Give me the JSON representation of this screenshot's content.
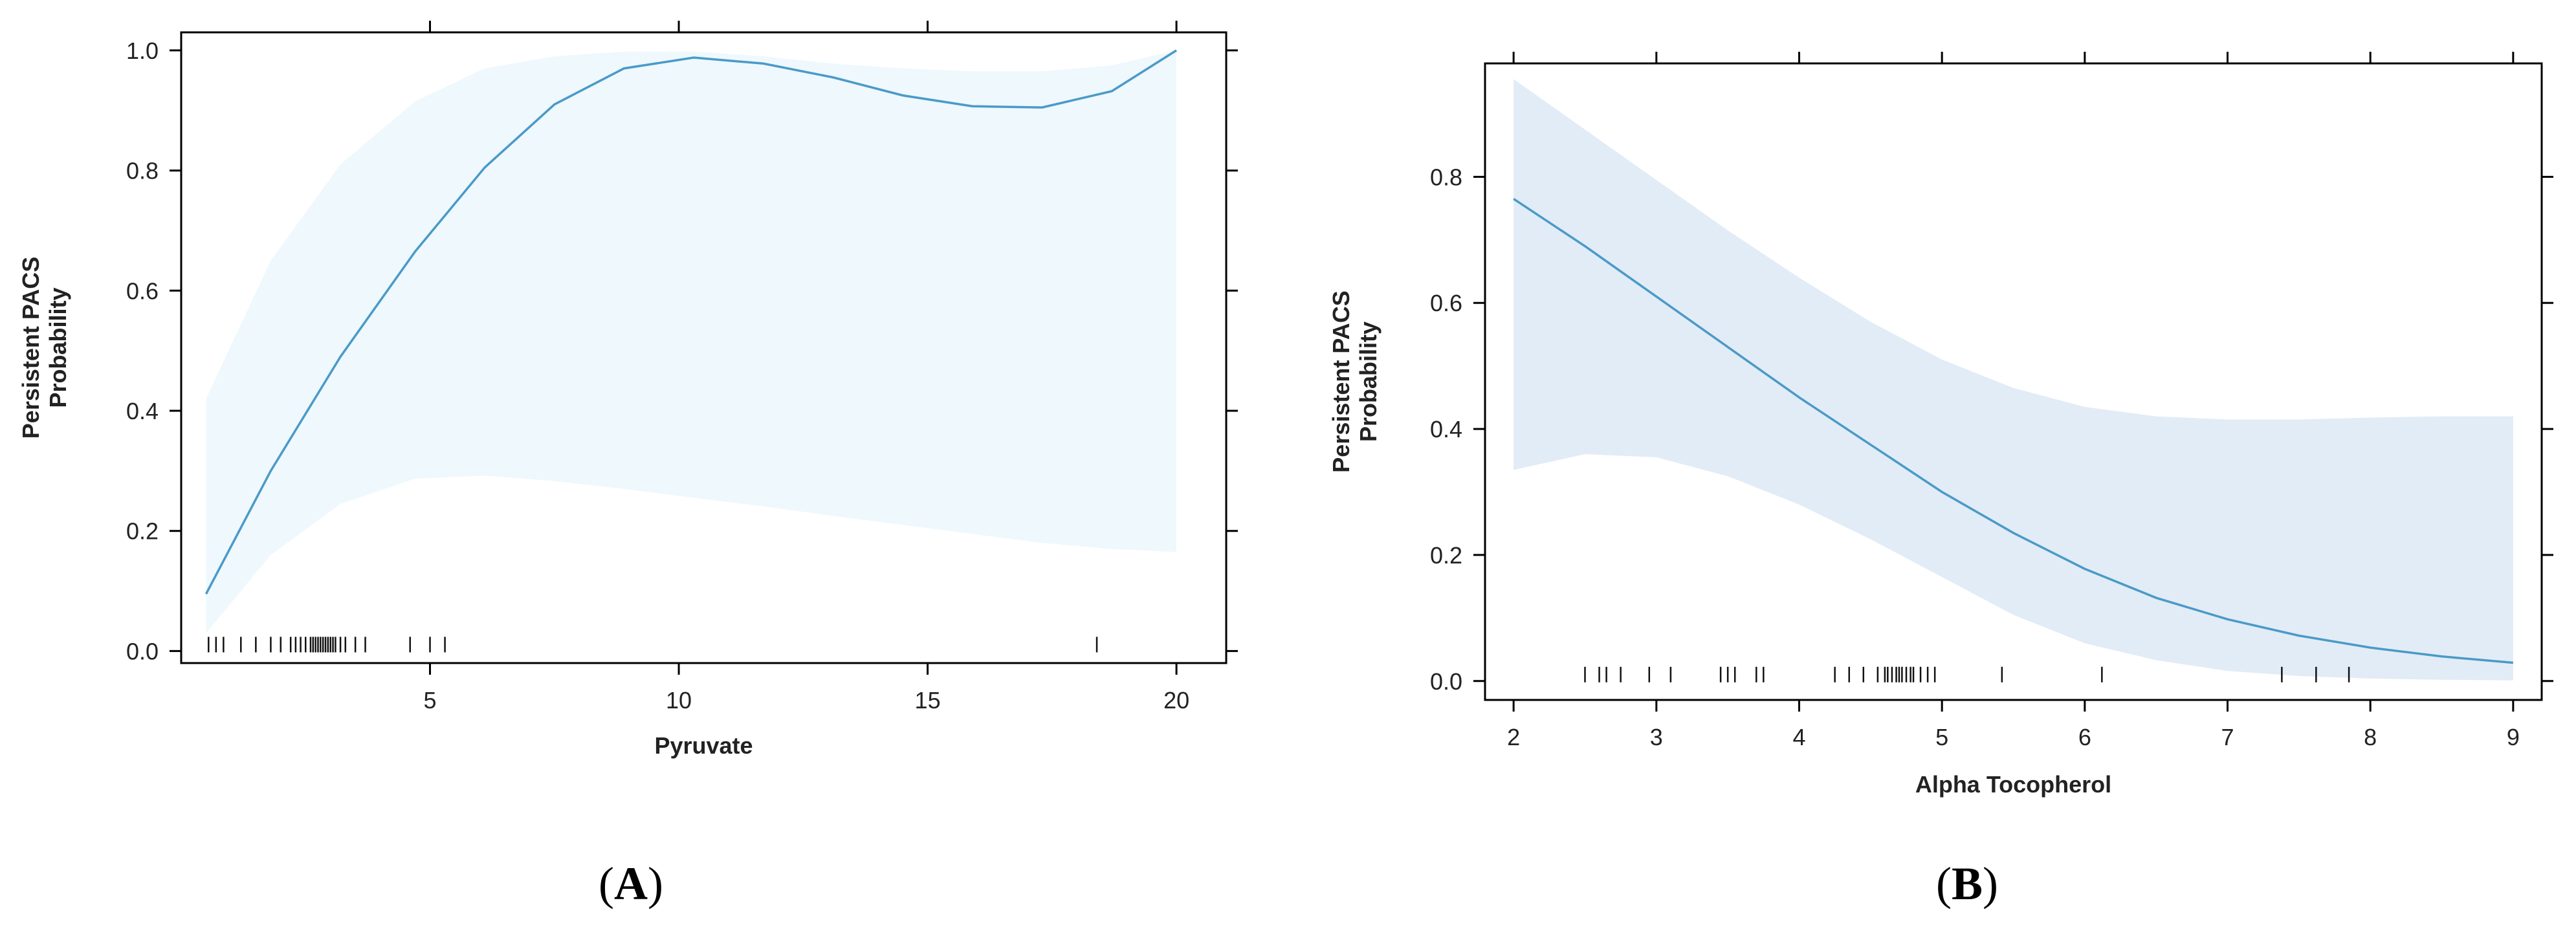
{
  "chart_data": [
    {
      "type": "line",
      "panel_label": "A",
      "xlabel": "Pyruvate",
      "ylabel_lines": [
        "Persistent PACS",
        "Probability"
      ],
      "xlim": [
        0,
        21
      ],
      "ylim": [
        -0.02,
        1.03
      ],
      "xticks": [
        5,
        10,
        15,
        20
      ],
      "xtick_labels": [
        "5",
        "10",
        "15",
        "20"
      ],
      "yticks": [
        0.0,
        0.2,
        0.4,
        0.6,
        0.8,
        1.0
      ],
      "ytick_labels": [
        "0.0",
        "0.2",
        "0.4",
        "0.6",
        "0.8",
        "1.0"
      ],
      "line_color": "#4a9ac8",
      "band_color": "#eef8fd",
      "series": [
        {
          "x": [
            0.5,
            1.8,
            3.2,
            4.7,
            6.1,
            7.5,
            8.9,
            10.3,
            11.7,
            13.1,
            14.5,
            15.9,
            17.3,
            18.7,
            20.0
          ],
          "y": [
            0.095,
            0.3,
            0.49,
            0.665,
            0.805,
            0.91,
            0.97,
            0.988,
            0.978,
            0.955,
            0.925,
            0.907,
            0.905,
            0.932,
            1.0
          ],
          "lower": [
            0.03,
            0.16,
            0.245,
            0.287,
            0.292,
            0.283,
            0.27,
            0.255,
            0.241,
            0.225,
            0.21,
            0.195,
            0.18,
            0.17,
            0.165
          ],
          "upper": [
            0.42,
            0.65,
            0.81,
            0.915,
            0.97,
            0.99,
            0.998,
            0.998,
            0.99,
            0.978,
            0.97,
            0.965,
            0.965,
            0.975,
            1.0
          ]
        }
      ],
      "rug": [
        0.55,
        0.7,
        0.85,
        1.2,
        1.5,
        1.8,
        2.0,
        2.2,
        2.3,
        2.4,
        2.5,
        2.6,
        2.65,
        2.7,
        2.75,
        2.8,
        2.85,
        2.9,
        2.95,
        3.0,
        3.05,
        3.1,
        3.2,
        3.3,
        3.5,
        3.7,
        4.6,
        5.0,
        5.3,
        18.4
      ]
    },
    {
      "type": "line",
      "panel_label": "B",
      "xlabel": "Alpha Tocopherol",
      "ylabel_lines": [
        "Persistent PACS",
        "Probability"
      ],
      "xlim": [
        1.8,
        9.2
      ],
      "ylim": [
        -0.03,
        0.98
      ],
      "xticks": [
        2,
        3,
        4,
        5,
        6,
        7,
        8,
        9
      ],
      "xtick_labels": [
        "2",
        "3",
        "4",
        "5",
        "6",
        "7",
        "8",
        "9"
      ],
      "yticks": [
        0.0,
        0.2,
        0.4,
        0.6,
        0.8
      ],
      "ytick_labels": [
        "0.0",
        "0.2",
        "0.4",
        "0.6",
        "0.8"
      ],
      "line_color": "#4a9ac8",
      "band_color": "#e2ecf6",
      "series": [
        {
          "x": [
            2.0,
            2.5,
            3.0,
            3.5,
            4.0,
            4.5,
            5.0,
            5.5,
            6.0,
            6.5,
            7.0,
            7.5,
            8.0,
            8.5,
            9.0
          ],
          "y": [
            0.765,
            0.69,
            0.61,
            0.53,
            0.45,
            0.375,
            0.3,
            0.235,
            0.178,
            0.132,
            0.098,
            0.072,
            0.053,
            0.039,
            0.029
          ],
          "lower": [
            0.335,
            0.36,
            0.355,
            0.325,
            0.28,
            0.225,
            0.165,
            0.105,
            0.06,
            0.033,
            0.016,
            0.008,
            0.004,
            0.002,
            0.001
          ],
          "upper": [
            0.955,
            0.875,
            0.795,
            0.715,
            0.64,
            0.57,
            0.51,
            0.465,
            0.435,
            0.42,
            0.415,
            0.415,
            0.418,
            0.42,
            0.42
          ]
        }
      ],
      "rug": [
        2.5,
        2.6,
        2.65,
        2.75,
        2.95,
        3.1,
        3.45,
        3.5,
        3.55,
        3.7,
        3.75,
        4.25,
        4.35,
        4.45,
        4.55,
        4.6,
        4.62,
        4.65,
        4.68,
        4.7,
        4.72,
        4.75,
        4.78,
        4.8,
        4.85,
        4.9,
        4.95,
        5.42,
        6.12,
        7.38,
        7.62,
        7.85
      ]
    }
  ]
}
